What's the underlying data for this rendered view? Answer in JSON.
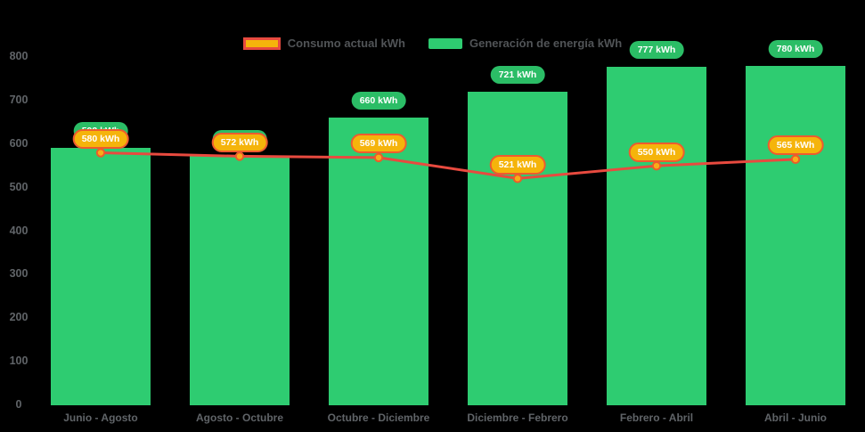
{
  "chart_data": {
    "type": "bar",
    "subtype": "combo-bar-line",
    "title": "",
    "categories": [
      "Junio - Agosto",
      "Agosto - Octubre",
      "Octubre - Diciembre",
      "Diciembre - Febrero",
      "Febrero - Abril",
      "Abril - Junio"
    ],
    "series": [
      {
        "name": "Consumo actual kWh",
        "type": "line",
        "values": [
          580,
          572,
          569,
          521,
          550,
          565
        ],
        "color": "#e84a3f",
        "point_fill": "#f9ac18",
        "point_stroke": "#ea5c2b",
        "label_bg": "#f5b40b",
        "label_border": "#ee5b2f",
        "label_text": "#ffffff"
      },
      {
        "name": "Generación de energía kWh",
        "type": "bar",
        "values": [
          592,
          572,
          660,
          721,
          777,
          780
        ],
        "color": "#2ecc71",
        "label_bg": "#2bbd66",
        "label_text": "#ffffff"
      }
    ],
    "unit": "kWh",
    "value_label_format": "{value} kWh",
    "ylim": [
      0,
      800
    ],
    "ytick_step": 100,
    "ytick_labels": [
      "0",
      "100",
      "200",
      "300",
      "400",
      "500",
      "600",
      "700",
      "800"
    ],
    "grid": false,
    "legend_position": "top",
    "background": "#000000"
  },
  "legend": {
    "consumo_label": "Consumo actual kWh",
    "generacion_label": "Generación de energía kWh"
  }
}
